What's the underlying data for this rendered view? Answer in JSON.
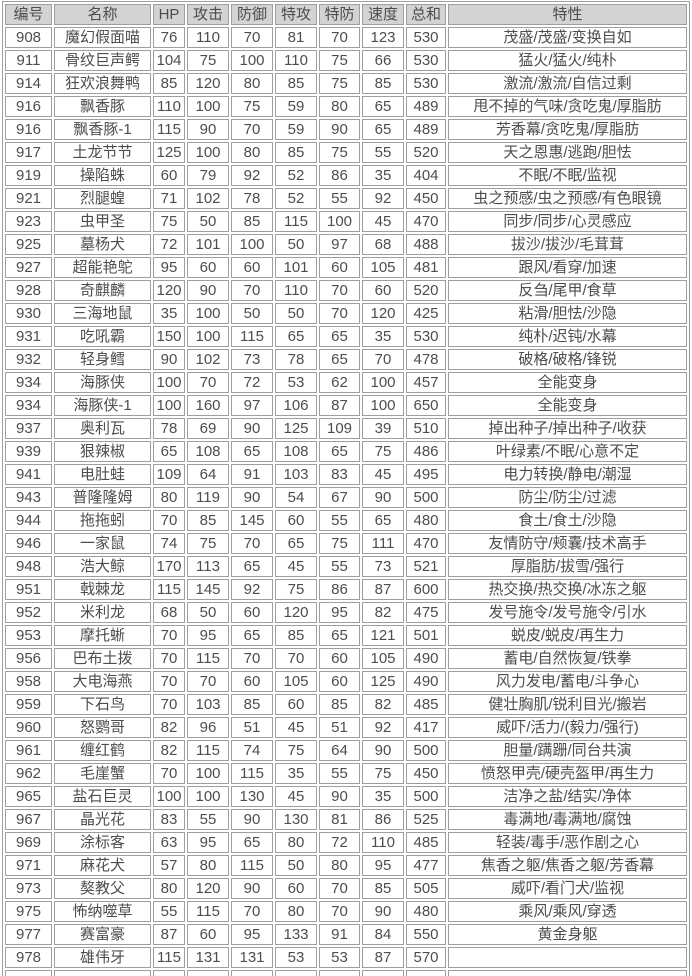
{
  "colors": {
    "border": "#9e9e9e",
    "text": "#4d4d4d",
    "header_bg": "#d3d3d3",
    "row_bg": "#ffffff"
  },
  "table": {
    "columns": [
      {
        "key": "num",
        "label": "编号"
      },
      {
        "key": "name",
        "label": "名称"
      },
      {
        "key": "hp",
        "label": "HP"
      },
      {
        "key": "atk",
        "label": "攻击"
      },
      {
        "key": "def",
        "label": "防御"
      },
      {
        "key": "spa",
        "label": "特攻"
      },
      {
        "key": "spd",
        "label": "特防"
      },
      {
        "key": "spe",
        "label": "速度"
      },
      {
        "key": "total",
        "label": "总和"
      },
      {
        "key": "abilities",
        "label": "特性"
      }
    ],
    "rows": [
      {
        "num": "908",
        "name": "魔幻假面喵",
        "hp": "76",
        "atk": "110",
        "def": "70",
        "spa": "81",
        "spd": "70",
        "spe": "123",
        "total": "530",
        "abilities": "茂盛/茂盛/变换自如"
      },
      {
        "num": "911",
        "name": "骨纹巨声鳄",
        "hp": "104",
        "atk": "75",
        "def": "100",
        "spa": "110",
        "spd": "75",
        "spe": "66",
        "total": "530",
        "abilities": "猛火/猛火/纯朴"
      },
      {
        "num": "914",
        "name": "狂欢浪舞鸭",
        "hp": "85",
        "atk": "120",
        "def": "80",
        "spa": "85",
        "spd": "75",
        "spe": "85",
        "total": "530",
        "abilities": "激流/激流/自信过剩"
      },
      {
        "num": "916",
        "name": "飘香豚",
        "hp": "110",
        "atk": "100",
        "def": "75",
        "spa": "59",
        "spd": "80",
        "spe": "65",
        "total": "489",
        "abilities": "甩不掉的气味/贪吃鬼/厚脂肪"
      },
      {
        "num": "916",
        "name": "飘香豚-1",
        "hp": "115",
        "atk": "90",
        "def": "70",
        "spa": "59",
        "spd": "90",
        "spe": "65",
        "total": "489",
        "abilities": "芳香幕/贪吃鬼/厚脂肪"
      },
      {
        "num": "917",
        "name": "土龙节节",
        "hp": "125",
        "atk": "100",
        "def": "80",
        "spa": "85",
        "spd": "75",
        "spe": "55",
        "total": "520",
        "abilities": "天之恩惠/逃跑/胆怯"
      },
      {
        "num": "919",
        "name": "操陷蛛",
        "hp": "60",
        "atk": "79",
        "def": "92",
        "spa": "52",
        "spd": "86",
        "spe": "35",
        "total": "404",
        "abilities": "不眠/不眠/监视"
      },
      {
        "num": "921",
        "name": "烈腿蝗",
        "hp": "71",
        "atk": "102",
        "def": "78",
        "spa": "52",
        "spd": "55",
        "spe": "92",
        "total": "450",
        "abilities": "虫之预感/虫之预感/有色眼镜"
      },
      {
        "num": "923",
        "name": "虫甲圣",
        "hp": "75",
        "atk": "50",
        "def": "85",
        "spa": "115",
        "spd": "100",
        "spe": "45",
        "total": "470",
        "abilities": "同步/同步/心灵感应"
      },
      {
        "num": "925",
        "name": "墓杨犬",
        "hp": "72",
        "atk": "101",
        "def": "100",
        "spa": "50",
        "spd": "97",
        "spe": "68",
        "total": "488",
        "abilities": "拔沙/拔沙/毛茸茸"
      },
      {
        "num": "927",
        "name": "超能艳鸵",
        "hp": "95",
        "atk": "60",
        "def": "60",
        "spa": "101",
        "spd": "60",
        "spe": "105",
        "total": "481",
        "abilities": "跟风/看穿/加速"
      },
      {
        "num": "928",
        "name": "奇麒麟",
        "hp": "120",
        "atk": "90",
        "def": "70",
        "spa": "110",
        "spd": "70",
        "spe": "60",
        "total": "520",
        "abilities": "反刍/尾甲/食草"
      },
      {
        "num": "930",
        "name": "三海地鼠",
        "hp": "35",
        "atk": "100",
        "def": "50",
        "spa": "50",
        "spd": "70",
        "spe": "120",
        "total": "425",
        "abilities": "粘滑/胆怯/沙隐"
      },
      {
        "num": "931",
        "name": "吃吼霸",
        "hp": "150",
        "atk": "100",
        "def": "115",
        "spa": "65",
        "spd": "65",
        "spe": "35",
        "total": "530",
        "abilities": "纯朴/迟钝/水幕"
      },
      {
        "num": "932",
        "name": "轻身鳕",
        "hp": "90",
        "atk": "102",
        "def": "73",
        "spa": "78",
        "spd": "65",
        "spe": "70",
        "total": "478",
        "abilities": "破格/破格/锋锐"
      },
      {
        "num": "934",
        "name": "海豚侠",
        "hp": "100",
        "atk": "70",
        "def": "72",
        "spa": "53",
        "spd": "62",
        "spe": "100",
        "total": "457",
        "abilities": "全能变身"
      },
      {
        "num": "934",
        "name": "海豚侠-1",
        "hp": "100",
        "atk": "160",
        "def": "97",
        "spa": "106",
        "spd": "87",
        "spe": "100",
        "total": "650",
        "abilities": "全能变身"
      },
      {
        "num": "937",
        "name": "奥利瓦",
        "hp": "78",
        "atk": "69",
        "def": "90",
        "spa": "125",
        "spd": "109",
        "spe": "39",
        "total": "510",
        "abilities": "掉出种子/掉出种子/收获"
      },
      {
        "num": "939",
        "name": "狠辣椒",
        "hp": "65",
        "atk": "108",
        "def": "65",
        "spa": "108",
        "spd": "65",
        "spe": "75",
        "total": "486",
        "abilities": "叶绿素/不眠/心意不定"
      },
      {
        "num": "941",
        "name": "电肚蛙",
        "hp": "109",
        "atk": "64",
        "def": "91",
        "spa": "103",
        "spd": "83",
        "spe": "45",
        "total": "495",
        "abilities": "电力转换/静电/潮湿"
      },
      {
        "num": "943",
        "name": "普隆隆姆",
        "hp": "80",
        "atk": "119",
        "def": "90",
        "spa": "54",
        "spd": "67",
        "spe": "90",
        "total": "500",
        "abilities": "防尘/防尘/过滤"
      },
      {
        "num": "944",
        "name": "拖拖蚓",
        "hp": "70",
        "atk": "85",
        "def": "145",
        "spa": "60",
        "spd": "55",
        "spe": "65",
        "total": "480",
        "abilities": "食土/食土/沙隐"
      },
      {
        "num": "946",
        "name": "一家鼠",
        "hp": "74",
        "atk": "75",
        "def": "70",
        "spa": "65",
        "spd": "75",
        "spe": "111",
        "total": "470",
        "abilities": "友情防守/颊囊/技术高手"
      },
      {
        "num": "948",
        "name": "浩大鲸",
        "hp": "170",
        "atk": "113",
        "def": "65",
        "spa": "45",
        "spd": "55",
        "spe": "73",
        "total": "521",
        "abilities": "厚脂肪/拔雪/强行"
      },
      {
        "num": "951",
        "name": "戟棘龙",
        "hp": "115",
        "atk": "145",
        "def": "92",
        "spa": "75",
        "spd": "86",
        "spe": "87",
        "total": "600",
        "abilities": "热交换/热交换/冰冻之躯"
      },
      {
        "num": "952",
        "name": "米利龙",
        "hp": "68",
        "atk": "50",
        "def": "60",
        "spa": "120",
        "spd": "95",
        "spe": "82",
        "total": "475",
        "abilities": "发号施令/发号施令/引水"
      },
      {
        "num": "953",
        "name": "摩托蜥",
        "hp": "70",
        "atk": "95",
        "def": "65",
        "spa": "85",
        "spd": "65",
        "spe": "121",
        "total": "501",
        "abilities": "蜕皮/蜕皮/再生力"
      },
      {
        "num": "956",
        "name": "巴布土拨",
        "hp": "70",
        "atk": "115",
        "def": "70",
        "spa": "70",
        "spd": "60",
        "spe": "105",
        "total": "490",
        "abilities": "蓄电/自然恢复/铁拳"
      },
      {
        "num": "958",
        "name": "大电海燕",
        "hp": "70",
        "atk": "70",
        "def": "60",
        "spa": "105",
        "spd": "60",
        "spe": "125",
        "total": "490",
        "abilities": "风力发电/蓄电/斗争心"
      },
      {
        "num": "959",
        "name": "下石鸟",
        "hp": "70",
        "atk": "103",
        "def": "85",
        "spa": "60",
        "spd": "85",
        "spe": "82",
        "total": "485",
        "abilities": "健壮胸肌/锐利目光/搬岩"
      },
      {
        "num": "960",
        "name": "怒鹦哥",
        "hp": "82",
        "atk": "96",
        "def": "51",
        "spa": "45",
        "spd": "51",
        "spe": "92",
        "total": "417",
        "abilities": "威吓/活力/(毅力/强行)"
      },
      {
        "num": "961",
        "name": "缠红鹤",
        "hp": "82",
        "atk": "115",
        "def": "74",
        "spa": "75",
        "spd": "64",
        "spe": "90",
        "total": "500",
        "abilities": "胆量/蹒跚/同台共演"
      },
      {
        "num": "962",
        "name": "毛崖蟹",
        "hp": "70",
        "atk": "100",
        "def": "115",
        "spa": "35",
        "spd": "55",
        "spe": "75",
        "total": "450",
        "abilities": "愤怒甲壳/硬壳盔甲/再生力"
      },
      {
        "num": "965",
        "name": "盐石巨灵",
        "hp": "100",
        "atk": "100",
        "def": "130",
        "spa": "45",
        "spd": "90",
        "spe": "35",
        "total": "500",
        "abilities": "洁净之盐/结实/净体"
      },
      {
        "num": "967",
        "name": "晶光花",
        "hp": "83",
        "atk": "55",
        "def": "90",
        "spa": "130",
        "spd": "81",
        "spe": "86",
        "total": "525",
        "abilities": "毒满地/毒满地/腐蚀"
      },
      {
        "num": "969",
        "name": "涂标客",
        "hp": "63",
        "atk": "95",
        "def": "65",
        "spa": "80",
        "spd": "72",
        "spe": "110",
        "total": "485",
        "abilities": "轻装/毒手/恶作剧之心"
      },
      {
        "num": "971",
        "name": "麻花犬",
        "hp": "57",
        "atk": "80",
        "def": "115",
        "spa": "50",
        "spd": "80",
        "spe": "95",
        "total": "477",
        "abilities": "焦香之躯/焦香之躯/芳香幕"
      },
      {
        "num": "973",
        "name": "獒教父",
        "hp": "80",
        "atk": "120",
        "def": "90",
        "spa": "60",
        "spd": "70",
        "spe": "85",
        "total": "505",
        "abilities": "威吓/看门犬/监视"
      },
      {
        "num": "975",
        "name": "怖纳噬草",
        "hp": "55",
        "atk": "115",
        "def": "70",
        "spa": "80",
        "spd": "70",
        "spe": "90",
        "total": "480",
        "abilities": "乘风/乘风/穿透"
      },
      {
        "num": "977",
        "name": "赛富豪",
        "hp": "87",
        "atk": "60",
        "def": "95",
        "spa": "133",
        "spd": "91",
        "spe": "84",
        "total": "550",
        "abilities": "黄金身躯"
      },
      {
        "num": "978",
        "name": "雄伟牙",
        "hp": "115",
        "atk": "131",
        "def": "131",
        "spa": "53",
        "spd": "53",
        "spe": "87",
        "total": "570",
        "abilities": ""
      }
    ]
  }
}
